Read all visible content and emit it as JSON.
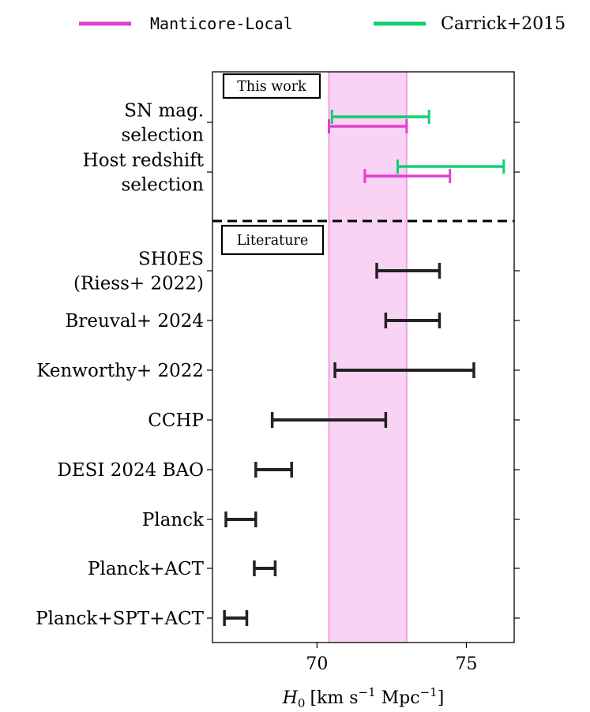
{
  "chart_data": {
    "type": "errorbar",
    "xlabel": "H_0 [km s^-1 Mpc^-1]",
    "xlabel_parts": {
      "symbol": "H",
      "sub": "0",
      "open": "[km s",
      "exp1": "−1",
      "mid": " Mpc",
      "exp2": "−1",
      "close": "]"
    },
    "xlim": [
      66.5,
      76.6
    ],
    "xticks": [
      70,
      75
    ],
    "xtick_labels": [
      "70",
      "75"
    ],
    "legend": [
      {
        "label": "Manticore-Local",
        "color": "#e040d0"
      },
      {
        "label": "Carrick+2015",
        "color": "#10d070"
      }
    ],
    "band": {
      "from": 70.4,
      "to": 73.0,
      "color": "#f9d3f3"
    },
    "sections": [
      {
        "label": "This work"
      },
      {
        "label": "Literature"
      }
    ],
    "rows": [
      {
        "label_lines": [
          "SN mag.",
          "selection"
        ],
        "section": 0,
        "bars": [
          {
            "series": "Carrick+2015",
            "lo": 70.5,
            "hi": 73.75
          },
          {
            "series": "Manticore-Local",
            "lo": 70.4,
            "hi": 73.0
          }
        ]
      },
      {
        "label_lines": [
          "Host redshift",
          "selection"
        ],
        "section": 0,
        "bars": [
          {
            "series": "Carrick+2015",
            "lo": 72.7,
            "hi": 76.25
          },
          {
            "series": "Manticore-Local",
            "lo": 71.6,
            "hi": 74.45
          }
        ]
      },
      {
        "label_lines": [
          "SH0ES",
          "(Riess+ 2022)"
        ],
        "section": 1,
        "bars": [
          {
            "series": "literature",
            "lo": 72.0,
            "hi": 74.1
          }
        ]
      },
      {
        "label_lines": [
          "Breuval+ 2024"
        ],
        "section": 1,
        "bars": [
          {
            "series": "literature",
            "lo": 72.3,
            "hi": 74.1
          }
        ]
      },
      {
        "label_lines": [
          "Kenworthy+ 2022"
        ],
        "section": 1,
        "bars": [
          {
            "series": "literature",
            "lo": 70.6,
            "hi": 75.25
          }
        ]
      },
      {
        "label_lines": [
          "CCHP"
        ],
        "section": 1,
        "bars": [
          {
            "series": "literature",
            "lo": 68.5,
            "hi": 72.3
          }
        ]
      },
      {
        "label_lines": [
          "DESI 2024 BAO"
        ],
        "section": 1,
        "bars": [
          {
            "series": "literature",
            "lo": 67.95,
            "hi": 69.15
          }
        ]
      },
      {
        "label_lines": [
          "Planck"
        ],
        "section": 1,
        "bars": [
          {
            "series": "literature",
            "lo": 66.95,
            "hi": 67.95
          }
        ]
      },
      {
        "label_lines": [
          "Planck+ACT"
        ],
        "section": 1,
        "bars": [
          {
            "series": "literature",
            "lo": 67.9,
            "hi": 68.6
          }
        ]
      },
      {
        "label_lines": [
          "Planck+SPT+ACT"
        ],
        "section": 1,
        "bars": [
          {
            "series": "literature",
            "lo": 66.9,
            "hi": 67.65
          }
        ]
      }
    ],
    "literature_color": "#222222"
  }
}
